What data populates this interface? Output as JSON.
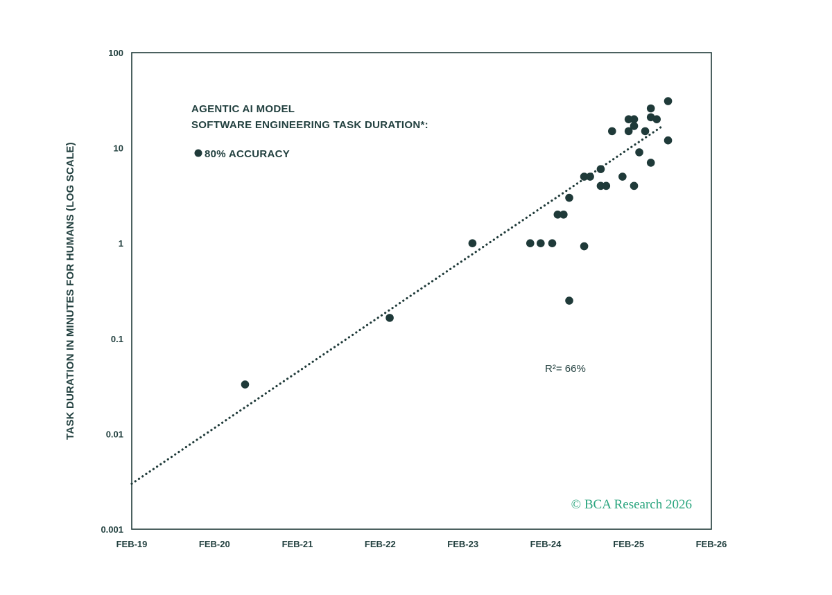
{
  "chart_data": {
    "type": "scatter",
    "title_lines": [
      "AGENTIC AI MODEL",
      "SOFTWARE ENGINEERING TASK DURATION*:"
    ],
    "ylabel": "TASK DURATION IN MINUTES FOR HUMANS (LOG SCALE)",
    "xlabel": "",
    "y_scale": "log",
    "ylim": [
      0.001,
      100
    ],
    "y_ticks": [
      0.001,
      0.01,
      0.1,
      1,
      10,
      100
    ],
    "y_tick_labels": [
      "0.001",
      "0.01",
      "0.1",
      "1",
      "10",
      "100"
    ],
    "xlim": [
      "2019-02-01",
      "2026-02-01"
    ],
    "x_ticks": [
      "2019-02-01",
      "2020-02-01",
      "2021-02-01",
      "2022-02-01",
      "2023-02-01",
      "2024-02-01",
      "2025-02-01",
      "2026-02-01"
    ],
    "x_tick_labels": [
      "FEB-19",
      "FEB-20",
      "FEB-21",
      "FEB-22",
      "FEB-23",
      "FEB-24",
      "FEB-25",
      "FEB-26"
    ],
    "legend": {
      "entries": [
        "80% ACCURACY"
      ],
      "placement": "top-left"
    },
    "series": [
      {
        "name": "80% ACCURACY",
        "points": [
          {
            "x": "2020-06-15",
            "y": 0.033
          },
          {
            "x": "2022-03-15",
            "y": 0.165
          },
          {
            "x": "2023-03-15",
            "y": 1.0
          },
          {
            "x": "2023-11-25",
            "y": 1.0
          },
          {
            "x": "2024-01-10",
            "y": 1.0
          },
          {
            "x": "2024-03-01",
            "y": 1.0
          },
          {
            "x": "2024-03-25",
            "y": 2.0
          },
          {
            "x": "2024-04-20",
            "y": 2.0
          },
          {
            "x": "2024-05-15",
            "y": 3.0
          },
          {
            "x": "2024-05-15",
            "y": 0.25
          },
          {
            "x": "2024-07-20",
            "y": 5.0
          },
          {
            "x": "2024-07-20",
            "y": 0.93
          },
          {
            "x": "2024-08-15",
            "y": 5.0
          },
          {
            "x": "2024-10-01",
            "y": 6.0
          },
          {
            "x": "2024-10-01",
            "y": 4.0
          },
          {
            "x": "2024-10-25",
            "y": 4.0
          },
          {
            "x": "2024-11-20",
            "y": 15.0
          },
          {
            "x": "2025-01-05",
            "y": 5.0
          },
          {
            "x": "2025-02-01",
            "y": 20.0
          },
          {
            "x": "2025-02-01",
            "y": 15.0
          },
          {
            "x": "2025-02-25",
            "y": 20.0
          },
          {
            "x": "2025-02-25",
            "y": 17.0
          },
          {
            "x": "2025-02-25",
            "y": 4.0
          },
          {
            "x": "2025-03-20",
            "y": 9.0
          },
          {
            "x": "2025-04-15",
            "y": 15.0
          },
          {
            "x": "2025-05-10",
            "y": 26.0
          },
          {
            "x": "2025-05-10",
            "y": 21.0
          },
          {
            "x": "2025-05-10",
            "y": 7.0
          },
          {
            "x": "2025-06-05",
            "y": 20.0
          },
          {
            "x": "2025-07-25",
            "y": 31.0
          },
          {
            "x": "2025-07-25",
            "y": 12.0
          }
        ]
      }
    ],
    "trendline": {
      "style": "dotted",
      "from": {
        "x": "2019-02-01",
        "y": 0.003
      },
      "to": {
        "x": "2025-07-01",
        "y": 17.0
      }
    },
    "annotations": [
      {
        "text": "R²= 66%"
      }
    ],
    "credit": "© BCA Research 2026",
    "grid": false,
    "colors": {
      "marker": "#1f3a39",
      "text": "#22403f",
      "axis": "#1f3a39",
      "credit": "#2aa57e"
    }
  }
}
